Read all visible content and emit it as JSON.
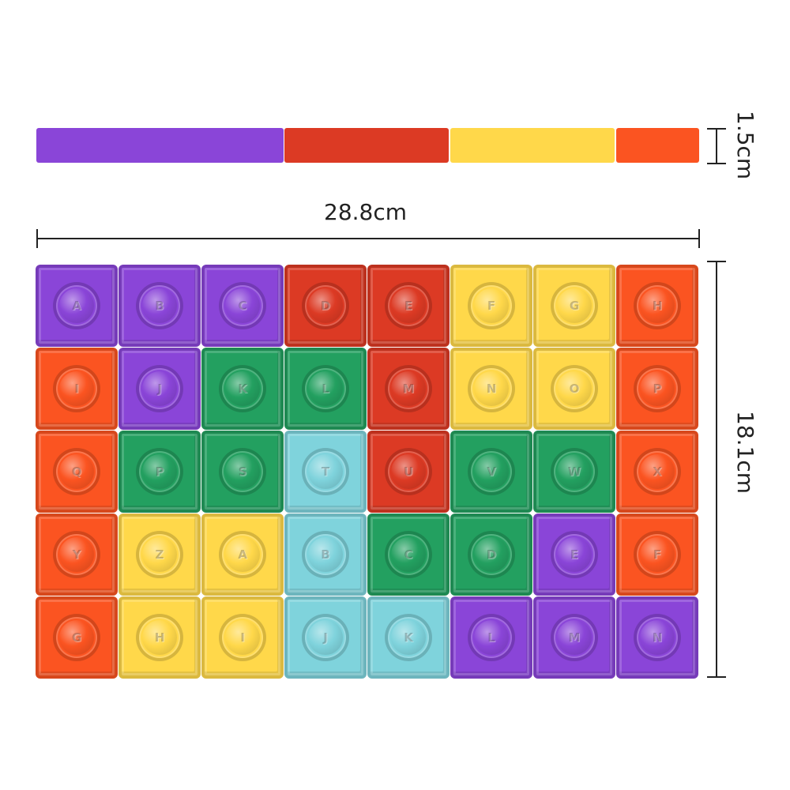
{
  "palette": {
    "purple": "#8a45d8",
    "red": "#dc3a24",
    "yellow": "#ffd84a",
    "orange": "#fb5421",
    "green": "#23a060",
    "teal": "#7fd3dc"
  },
  "side_view": {
    "segments": [
      {
        "color": "purple"
      },
      {
        "color": "red"
      },
      {
        "color": "yellow"
      },
      {
        "color": "orange"
      }
    ],
    "thickness_label": "1.5cm"
  },
  "dimensions": {
    "width_label": "28.8cm",
    "height_label": "18.1cm"
  },
  "board": {
    "cells": [
      {
        "row": 0,
        "col": 0,
        "color": "purple",
        "letter": "A"
      },
      {
        "row": 0,
        "col": 1,
        "color": "purple",
        "letter": "B"
      },
      {
        "row": 0,
        "col": 2,
        "color": "purple",
        "letter": "C"
      },
      {
        "row": 0,
        "col": 3,
        "color": "red",
        "letter": "D"
      },
      {
        "row": 0,
        "col": 4,
        "color": "red",
        "letter": "E"
      },
      {
        "row": 0,
        "col": 5,
        "color": "yellow",
        "letter": "F"
      },
      {
        "row": 0,
        "col": 6,
        "color": "yellow",
        "letter": "G"
      },
      {
        "row": 0,
        "col": 7,
        "color": "orange",
        "letter": "H"
      },
      {
        "row": 1,
        "col": 0,
        "color": "orange",
        "letter": "I"
      },
      {
        "row": 1,
        "col": 1,
        "color": "purple",
        "letter": "J"
      },
      {
        "row": 1,
        "col": 2,
        "color": "green",
        "letter": "K"
      },
      {
        "row": 1,
        "col": 3,
        "color": "green",
        "letter": "L"
      },
      {
        "row": 1,
        "col": 4,
        "color": "red",
        "letter": "M"
      },
      {
        "row": 1,
        "col": 5,
        "color": "yellow",
        "letter": "N"
      },
      {
        "row": 1,
        "col": 6,
        "color": "yellow",
        "letter": "O"
      },
      {
        "row": 1,
        "col": 7,
        "color": "orange",
        "letter": "P"
      },
      {
        "row": 2,
        "col": 0,
        "color": "orange",
        "letter": "Q"
      },
      {
        "row": 2,
        "col": 1,
        "color": "green",
        "letter": "P"
      },
      {
        "row": 2,
        "col": 2,
        "color": "green",
        "letter": "S"
      },
      {
        "row": 2,
        "col": 3,
        "color": "teal",
        "letter": "T"
      },
      {
        "row": 2,
        "col": 4,
        "color": "red",
        "letter": "U"
      },
      {
        "row": 2,
        "col": 5,
        "color": "green",
        "letter": "V"
      },
      {
        "row": 2,
        "col": 6,
        "color": "green",
        "letter": "W"
      },
      {
        "row": 2,
        "col": 7,
        "color": "orange",
        "letter": "X"
      },
      {
        "row": 3,
        "col": 0,
        "color": "orange",
        "letter": "Y"
      },
      {
        "row": 3,
        "col": 1,
        "color": "yellow",
        "letter": "Z"
      },
      {
        "row": 3,
        "col": 2,
        "color": "yellow",
        "letter": "A"
      },
      {
        "row": 3,
        "col": 3,
        "color": "teal",
        "letter": "B"
      },
      {
        "row": 3,
        "col": 4,
        "color": "green",
        "letter": "C"
      },
      {
        "row": 3,
        "col": 5,
        "color": "green",
        "letter": "D"
      },
      {
        "row": 3,
        "col": 6,
        "color": "purple",
        "letter": "E"
      },
      {
        "row": 3,
        "col": 7,
        "color": "orange",
        "letter": "F"
      },
      {
        "row": 4,
        "col": 0,
        "color": "orange",
        "letter": "G"
      },
      {
        "row": 4,
        "col": 1,
        "color": "yellow",
        "letter": "H"
      },
      {
        "row": 4,
        "col": 2,
        "color": "yellow",
        "letter": "I"
      },
      {
        "row": 4,
        "col": 3,
        "color": "teal",
        "letter": "J"
      },
      {
        "row": 4,
        "col": 4,
        "color": "teal",
        "letter": "K"
      },
      {
        "row": 4,
        "col": 5,
        "color": "purple",
        "letter": "L"
      },
      {
        "row": 4,
        "col": 6,
        "color": "purple",
        "letter": "M"
      },
      {
        "row": 4,
        "col": 7,
        "color": "purple",
        "letter": "N"
      }
    ]
  }
}
